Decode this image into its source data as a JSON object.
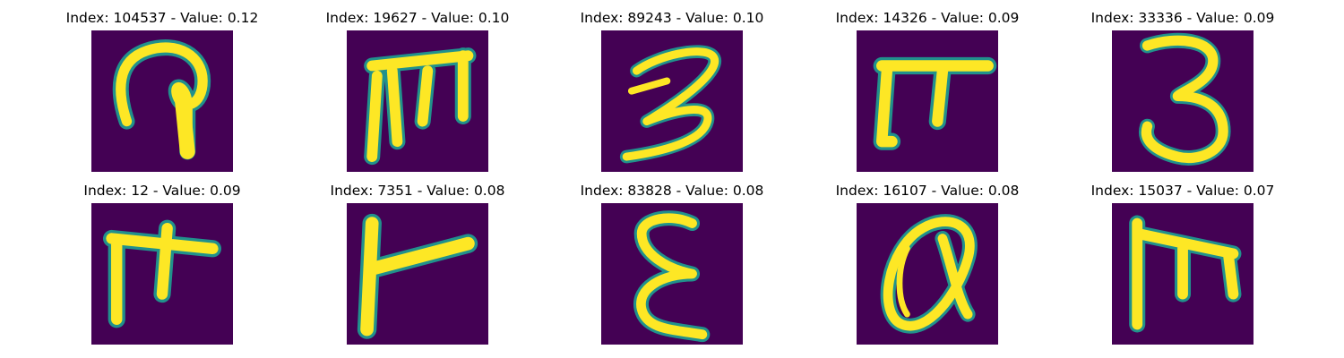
{
  "colors": {
    "background": "#440154",
    "stroke_core": "#fde725",
    "stroke_edge": "#21918c",
    "title_text": "#000000"
  },
  "panels": [
    {
      "title": "Index: 104537 - Value: 0.12",
      "glyph": "handwritten-hook-letter"
    },
    {
      "title": "Index: 19627 - Value: 0.10",
      "glyph": "handwritten-m-letter"
    },
    {
      "title": "Index: 89243 - Value: 0.10",
      "glyph": "handwritten-3-digit"
    },
    {
      "title": "Index: 14326 - Value: 0.09",
      "glyph": "handwritten-pi-letter"
    },
    {
      "title": "Index: 33336 - Value: 0.09",
      "glyph": "handwritten-3-digit"
    },
    {
      "title": "Index: 12 - Value: 0.09",
      "glyph": "handwritten-pi-cross-letter"
    },
    {
      "title": "Index: 7351 - Value: 0.08",
      "glyph": "handwritten-corner-letter"
    },
    {
      "title": "Index: 83828 - Value: 0.08",
      "glyph": "handwritten-epsilon-letter"
    },
    {
      "title": "Index: 16107 - Value: 0.08",
      "glyph": "handwritten-q-letter"
    },
    {
      "title": "Index: 15037 - Value: 0.07",
      "glyph": "handwritten-m-letter"
    }
  ]
}
